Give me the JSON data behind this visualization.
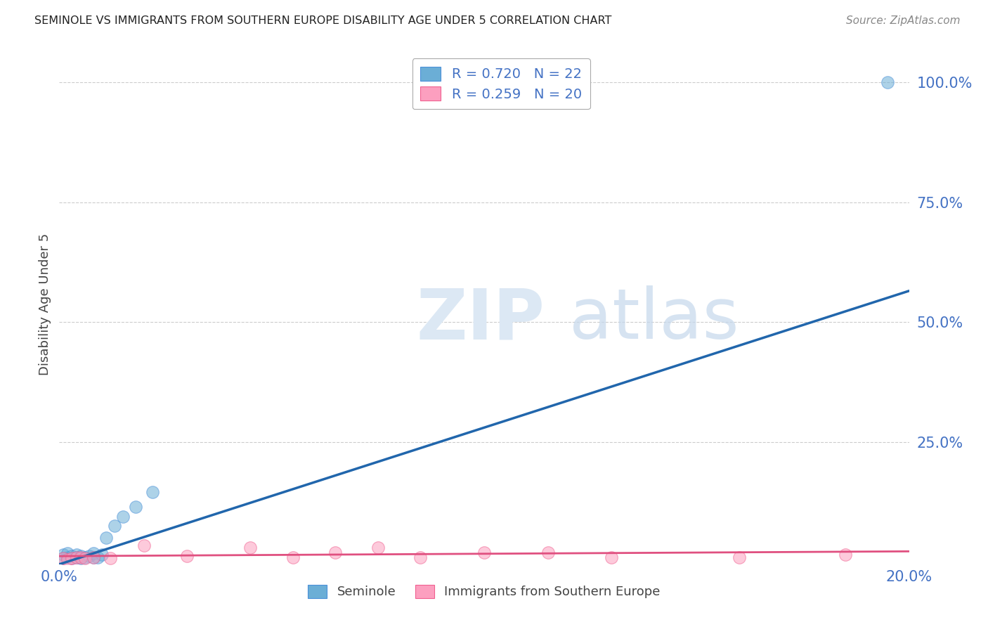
{
  "title": "SEMINOLE VS IMMIGRANTS FROM SOUTHERN EUROPE DISABILITY AGE UNDER 5 CORRELATION CHART",
  "source": "Source: ZipAtlas.com",
  "ylabel": "Disability Age Under 5",
  "xlim": [
    0.0,
    0.2
  ],
  "ylim": [
    -0.005,
    1.08
  ],
  "xticks": [
    0.0,
    0.05,
    0.1,
    0.15,
    0.2
  ],
  "xtick_labels": [
    "0.0%",
    "",
    "",
    "",
    "20.0%"
  ],
  "ytick_labels_right": [
    "100.0%",
    "75.0%",
    "50.0%",
    "25.0%"
  ],
  "ytick_vals_right": [
    1.0,
    0.75,
    0.5,
    0.25
  ],
  "blue_R": 0.72,
  "blue_N": 22,
  "pink_R": 0.259,
  "pink_N": 20,
  "blue_color": "#6baed6",
  "pink_color": "#fc9fbf",
  "blue_scatter_edge": "#4a90d9",
  "pink_scatter_edge": "#f06090",
  "blue_line_color": "#2166ac",
  "pink_line_color": "#e05080",
  "grid_color": "#cccccc",
  "background_color": "#ffffff",
  "seminole_x": [
    0.001,
    0.001,
    0.002,
    0.002,
    0.003,
    0.003,
    0.004,
    0.004,
    0.005,
    0.005,
    0.006,
    0.007,
    0.008,
    0.008,
    0.009,
    0.01,
    0.011,
    0.013,
    0.015,
    0.018,
    0.022,
    0.195
  ],
  "seminole_y": [
    0.008,
    0.015,
    0.01,
    0.018,
    0.008,
    0.012,
    0.01,
    0.015,
    0.008,
    0.012,
    0.01,
    0.012,
    0.01,
    0.018,
    0.01,
    0.015,
    0.05,
    0.075,
    0.095,
    0.115,
    0.145,
    1.0
  ],
  "southern_x": [
    0.001,
    0.002,
    0.003,
    0.004,
    0.005,
    0.006,
    0.008,
    0.012,
    0.02,
    0.03,
    0.045,
    0.055,
    0.065,
    0.075,
    0.085,
    0.1,
    0.115,
    0.13,
    0.16,
    0.185
  ],
  "southern_y": [
    0.008,
    0.005,
    0.008,
    0.01,
    0.01,
    0.008,
    0.01,
    0.008,
    0.035,
    0.012,
    0.03,
    0.01,
    0.02,
    0.03,
    0.01,
    0.02,
    0.02,
    0.01,
    0.01,
    0.015
  ],
  "blue_trend_x0": 0.0,
  "blue_trend_y0": -0.005,
  "blue_trend_x1": 0.2,
  "blue_trend_y1": 0.565,
  "pink_trend_x0": 0.0,
  "pink_trend_y0": 0.012,
  "pink_trend_x1": 0.2,
  "pink_trend_y1": 0.022
}
